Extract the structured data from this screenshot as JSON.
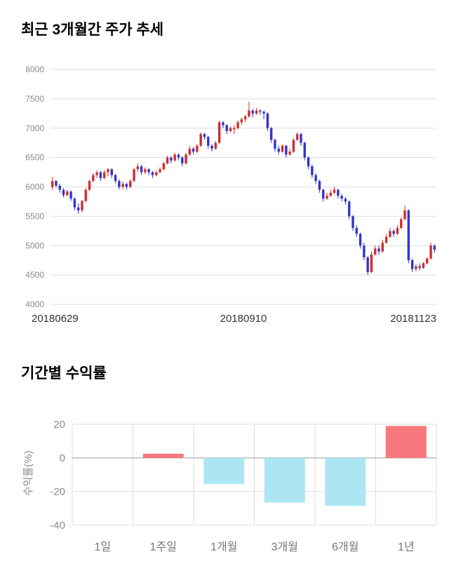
{
  "chart_data": [
    {
      "type": "candlestick",
      "title": "최근 3개월간 주가 추세",
      "ylim": [
        4000,
        8000
      ],
      "y_ticks": [
        8000,
        7500,
        7000,
        6500,
        6000,
        5500,
        5000,
        4500,
        4000
      ],
      "x_tick_labels": [
        "20180629",
        "20180910",
        "20181123"
      ],
      "up_color": "#cf2e2e",
      "down_color": "#3333cc",
      "grid_color": "#dddddd",
      "axis_text_color": "#8a8a8a",
      "x_label_color": "#333333",
      "candles_ohlc": [
        [
          6000,
          6170,
          5950,
          6100
        ],
        [
          6100,
          6120,
          5990,
          6020
        ],
        [
          6020,
          6050,
          5900,
          5950
        ],
        [
          5950,
          5980,
          5820,
          5860
        ],
        [
          5860,
          5950,
          5840,
          5920
        ],
        [
          5920,
          5940,
          5760,
          5800
        ],
        [
          5800,
          5820,
          5600,
          5650
        ],
        [
          5650,
          5720,
          5540,
          5600
        ],
        [
          5600,
          5780,
          5570,
          5760
        ],
        [
          5760,
          5980,
          5740,
          5950
        ],
        [
          5950,
          6120,
          5930,
          6100
        ],
        [
          6100,
          6230,
          6080,
          6200
        ],
        [
          6200,
          6280,
          6150,
          6250
        ],
        [
          6250,
          6270,
          6100,
          6150
        ],
        [
          6150,
          6280,
          6130,
          6250
        ],
        [
          6250,
          6320,
          6180,
          6300
        ],
        [
          6300,
          6320,
          6150,
          6200
        ],
        [
          6200,
          6220,
          6060,
          6100
        ],
        [
          6100,
          6130,
          5960,
          6000
        ],
        [
          6000,
          6090,
          5960,
          6050
        ],
        [
          6050,
          6070,
          5950,
          6000
        ],
        [
          6000,
          6130,
          5980,
          6100
        ],
        [
          6100,
          6320,
          6080,
          6300
        ],
        [
          6300,
          6400,
          6250,
          6350
        ],
        [
          6350,
          6380,
          6200,
          6250
        ],
        [
          6250,
          6330,
          6220,
          6300
        ],
        [
          6300,
          6320,
          6200,
          6250
        ],
        [
          6250,
          6270,
          6150,
          6200
        ],
        [
          6200,
          6280,
          6180,
          6250
        ],
        [
          6250,
          6330,
          6230,
          6300
        ],
        [
          6300,
          6430,
          6280,
          6400
        ],
        [
          6400,
          6530,
          6380,
          6500
        ],
        [
          6500,
          6520,
          6400,
          6450
        ],
        [
          6450,
          6580,
          6430,
          6550
        ],
        [
          6550,
          6570,
          6450,
          6500
        ],
        [
          6500,
          6520,
          6350,
          6400
        ],
        [
          6400,
          6580,
          6380,
          6550
        ],
        [
          6550,
          6700,
          6530,
          6650
        ],
        [
          6650,
          6680,
          6550,
          6600
        ],
        [
          6600,
          6730,
          6580,
          6700
        ],
        [
          6700,
          6930,
          6680,
          6900
        ],
        [
          6900,
          6920,
          6800,
          6850
        ],
        [
          6850,
          6870,
          6650,
          6700
        ],
        [
          6700,
          6730,
          6600,
          6650
        ],
        [
          6650,
          6780,
          6630,
          6750
        ],
        [
          6750,
          7130,
          6730,
          7100
        ],
        [
          7100,
          7120,
          7000,
          7050
        ],
        [
          7050,
          7070,
          6900,
          6950
        ],
        [
          6950,
          7030,
          6930,
          7000
        ],
        [
          6980,
          7050,
          6900,
          7000
        ],
        [
          7000,
          7130,
          6980,
          7100
        ],
        [
          7100,
          7180,
          7050,
          7150
        ],
        [
          7150,
          7230,
          7100,
          7200
        ],
        [
          7200,
          7450,
          7180,
          7300
        ],
        [
          7300,
          7330,
          7180,
          7250
        ],
        [
          7250,
          7340,
          7230,
          7300
        ],
        [
          7300,
          7320,
          7230,
          7280
        ],
        [
          7280,
          7300,
          7150,
          7250
        ],
        [
          7250,
          7270,
          6950,
          7000
        ],
        [
          7000,
          7020,
          6750,
          6800
        ],
        [
          6800,
          6820,
          6600,
          6650
        ],
        [
          6650,
          6700,
          6550,
          6600
        ],
        [
          6600,
          6720,
          6580,
          6700
        ],
        [
          6700,
          6710,
          6500,
          6550
        ],
        [
          6550,
          6650,
          6530,
          6600
        ],
        [
          6600,
          6830,
          6580,
          6800
        ],
        [
          6800,
          6930,
          6780,
          6900
        ],
        [
          6900,
          6920,
          6700,
          6750
        ],
        [
          6750,
          6770,
          6450,
          6500
        ],
        [
          6500,
          6520,
          6300,
          6350
        ],
        [
          6350,
          6380,
          6150,
          6200
        ],
        [
          6200,
          6230,
          6050,
          6100
        ],
        [
          6100,
          6120,
          5900,
          5950
        ],
        [
          5950,
          5970,
          5750,
          5800
        ],
        [
          5800,
          5900,
          5780,
          5850
        ],
        [
          5850,
          5950,
          5830,
          5900
        ],
        [
          5900,
          6000,
          5880,
          5950
        ],
        [
          5950,
          5970,
          5800,
          5850
        ],
        [
          5850,
          5880,
          5750,
          5800
        ],
        [
          5800,
          5830,
          5700,
          5750
        ],
        [
          5750,
          5770,
          5450,
          5500
        ],
        [
          5500,
          5520,
          5250,
          5300
        ],
        [
          5300,
          5350,
          5150,
          5200
        ],
        [
          5200,
          5220,
          4950,
          5000
        ],
        [
          5000,
          5050,
          4750,
          4800
        ],
        [
          4800,
          4820,
          4500,
          4550
        ],
        [
          4550,
          4900,
          4530,
          4850
        ],
        [
          4850,
          5000,
          4830,
          4950
        ],
        [
          4950,
          5000,
          4850,
          4900
        ],
        [
          4900,
          5100,
          4880,
          5050
        ],
        [
          5050,
          5200,
          5030,
          5150
        ],
        [
          5150,
          5300,
          5130,
          5250
        ],
        [
          5250,
          5280,
          5150,
          5200
        ],
        [
          5200,
          5350,
          5180,
          5300
        ],
        [
          5300,
          5480,
          5280,
          5450
        ],
        [
          5450,
          5680,
          5430,
          5600
        ],
        [
          5600,
          5620,
          4700,
          4750
        ],
        [
          4750,
          4780,
          4550,
          4600
        ],
        [
          4600,
          4680,
          4560,
          4650
        ],
        [
          4650,
          4700,
          4580,
          4620
        ],
        [
          4620,
          4720,
          4600,
          4700
        ],
        [
          4700,
          4800,
          4680,
          4780
        ],
        [
          4780,
          5050,
          4760,
          5000
        ],
        [
          5000,
          5020,
          4880,
          4930
        ]
      ]
    },
    {
      "type": "bar",
      "title": "기간별 수익률",
      "ylabel": "수익률(%)",
      "categories": [
        "1일",
        "1주일",
        "1개월",
        "3개월",
        "6개월",
        "1년"
      ],
      "values": [
        0,
        2.5,
        -15.5,
        -26.5,
        -28.5,
        19
      ],
      "y_ticks": [
        20,
        0,
        -20,
        -40
      ],
      "ylim": [
        -40,
        20
      ],
      "positive_color": "#f8797d",
      "negative_color": "#ace6f3",
      "grid_color": "#dddddd",
      "zero_line_color": "#999999",
      "axis_text_color": "#8a8a8a",
      "category_text_color": "#777777",
      "legend_position": "none",
      "grid": "on"
    }
  ]
}
